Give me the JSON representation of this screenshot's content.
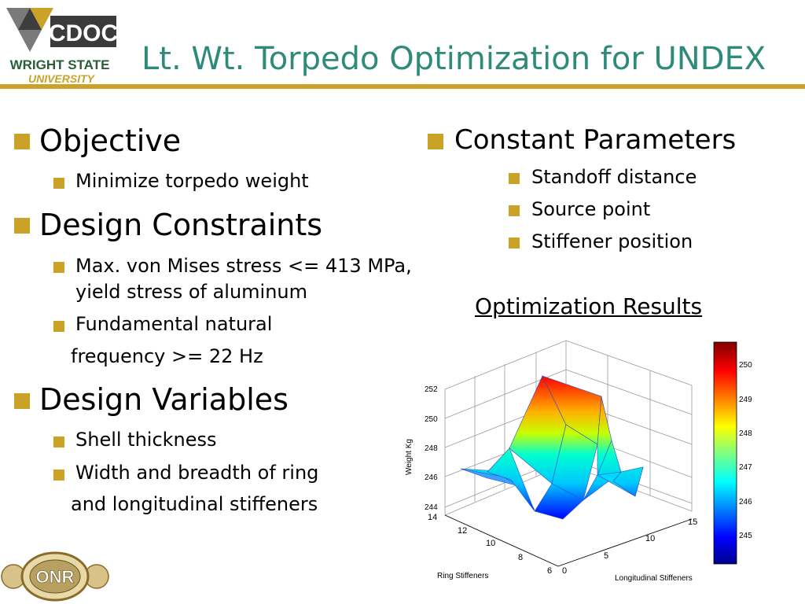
{
  "header": {
    "title": "Lt. Wt. Torpedo Optimization for UNDEX",
    "logo": {
      "mark": "CDOC",
      "line1": "WRIGHT STATE",
      "line2": "UNIVERSITY"
    }
  },
  "footer_logo": {
    "text": "ONR"
  },
  "left": {
    "objective": {
      "heading": "Objective",
      "items": [
        "Minimize torpedo weight"
      ]
    },
    "constraints": {
      "heading": "Design Constraints",
      "item1_line1": "Max. von Mises stress <= 413 MPa,",
      "item1_line2": "yield stress of aluminum",
      "item2_line1": "Fundamental natural",
      "item2_line2": "frequency >= 22 Hz"
    },
    "variables": {
      "heading": "Design Variables",
      "item1": "Shell thickness",
      "item2_line1": "Width and breadth of ring",
      "item2_line2": "and longitudinal stiffeners"
    }
  },
  "right": {
    "heading": "Constant Parameters",
    "items": [
      "Standoff distance",
      "Source point",
      "Stiffener position"
    ],
    "results_title": "Optimization Results"
  },
  "chart_data": {
    "type": "surface",
    "xlabel": "Longitudinal Stiffeners",
    "ylabel": "Ring Stiffeners",
    "zlabel": "Weight Kg",
    "x_ticks": [
      "0",
      "5",
      "10",
      "15"
    ],
    "y_ticks": [
      "6",
      "8",
      "10",
      "12",
      "14"
    ],
    "z_ticks": [
      "244",
      "246",
      "248",
      "250",
      "252"
    ],
    "colorbar_ticks": [
      "245",
      "246",
      "247",
      "248",
      "249",
      "250"
    ],
    "zlim": [
      244,
      252
    ],
    "colormap": "jet",
    "grid": true,
    "colorbar": "right"
  }
}
